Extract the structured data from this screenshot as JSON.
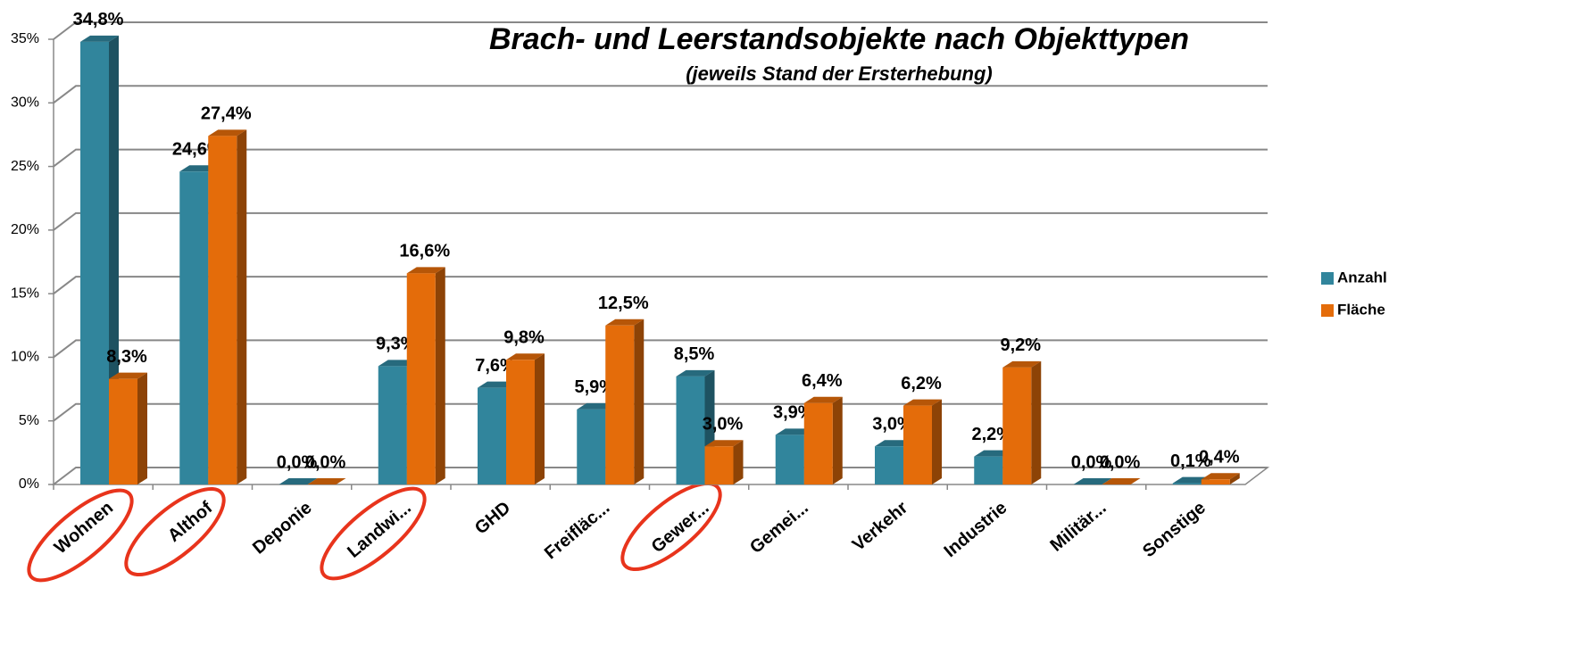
{
  "chart_data": {
    "type": "bar3d",
    "title": "Brach- und Leerstandsobjekte nach Objekttypen",
    "subtitle": "(jeweils Stand der Ersterhebung)",
    "categories": [
      "Wohnen",
      "Althof",
      "Deponie",
      "Landwi...",
      "GHD",
      "Freifläc...",
      "Gewer...",
      "Gemei...",
      "Verkehr",
      "Industrie",
      "Militär...",
      "Sonstige"
    ],
    "series": [
      {
        "name": "Anzahl",
        "color": "#31859c",
        "values": [
          34.8,
          24.6,
          0.0,
          9.3,
          7.6,
          5.9,
          8.5,
          3.9,
          3.0,
          2.2,
          0.0,
          0.1
        ],
        "value_labels": [
          "34,8%",
          "24,6%",
          "0,0%",
          "9,3%",
          "7,6%",
          "5,9%",
          "8,5%",
          "3,9%",
          "3,0%",
          "2,2%",
          "0,0%",
          "0,1%"
        ]
      },
      {
        "name": "Fläche",
        "color": "#e46c0a",
        "values": [
          8.3,
          27.4,
          0.0,
          16.6,
          9.8,
          12.5,
          3.0,
          6.4,
          6.2,
          9.2,
          0.0,
          0.4
        ],
        "value_labels": [
          "8,3%",
          "27,4%",
          "0,0%",
          "16,6%",
          "9,8%",
          "12,5%",
          "3,0%",
          "6,4%",
          "6,2%",
          "9,2%",
          "0,0%",
          "0,4%"
        ]
      }
    ],
    "ylim": [
      0,
      35
    ],
    "yticks": [
      {
        "value": 0,
        "label": "0%"
      },
      {
        "value": 5,
        "label": "5%"
      },
      {
        "value": 10,
        "label": "10%"
      },
      {
        "value": 15,
        "label": "15%"
      },
      {
        "value": 20,
        "label": "20%"
      },
      {
        "value": 25,
        "label": "25%"
      },
      {
        "value": 30,
        "label": "30%"
      },
      {
        "value": 35,
        "label": "35%"
      }
    ],
    "grid": true,
    "legend": "right"
  }
}
